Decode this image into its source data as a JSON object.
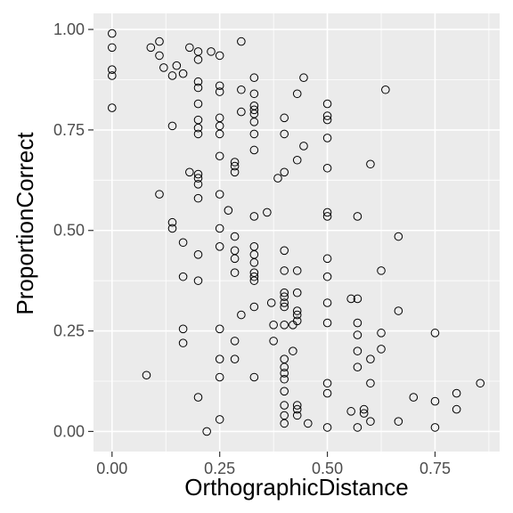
{
  "chart_data": {
    "type": "scatter",
    "title": "",
    "xlabel": "OrthographicDistance",
    "ylabel": "ProportionCorrect",
    "xlim": [
      -0.043,
      0.9
    ],
    "ylim": [
      -0.05,
      1.04
    ],
    "x_ticks": [
      0.0,
      0.25,
      0.5,
      0.75
    ],
    "x_tick_labels": [
      "0.00",
      "0.25",
      "0.50",
      "0.75"
    ],
    "y_ticks": [
      0.0,
      0.25,
      0.5,
      0.75,
      1.0
    ],
    "y_tick_labels": [
      "0.00",
      "0.25",
      "0.50",
      "0.75",
      "1.00"
    ],
    "grid": true,
    "legend": "none",
    "points": [
      {
        "x": 0.0,
        "y": 0.99
      },
      {
        "x": 0.0,
        "y": 0.955
      },
      {
        "x": 0.0,
        "y": 0.9
      },
      {
        "x": 0.0,
        "y": 0.885
      },
      {
        "x": 0.0,
        "y": 0.805
      },
      {
        "x": 0.09,
        "y": 0.955
      },
      {
        "x": 0.08,
        "y": 0.14
      },
      {
        "x": 0.11,
        "y": 0.97
      },
      {
        "x": 0.11,
        "y": 0.935
      },
      {
        "x": 0.12,
        "y": 0.905
      },
      {
        "x": 0.11,
        "y": 0.59
      },
      {
        "x": 0.14,
        "y": 0.885
      },
      {
        "x": 0.15,
        "y": 0.91
      },
      {
        "x": 0.165,
        "y": 0.89
      },
      {
        "x": 0.14,
        "y": 0.76
      },
      {
        "x": 0.14,
        "y": 0.52
      },
      {
        "x": 0.14,
        "y": 0.505
      },
      {
        "x": 0.165,
        "y": 0.47
      },
      {
        "x": 0.165,
        "y": 0.385
      },
      {
        "x": 0.165,
        "y": 0.255
      },
      {
        "x": 0.165,
        "y": 0.22
      },
      {
        "x": 0.18,
        "y": 0.955
      },
      {
        "x": 0.2,
        "y": 0.945
      },
      {
        "x": 0.2,
        "y": 0.925
      },
      {
        "x": 0.2,
        "y": 0.87
      },
      {
        "x": 0.2,
        "y": 0.855
      },
      {
        "x": 0.2,
        "y": 0.815
      },
      {
        "x": 0.2,
        "y": 0.775
      },
      {
        "x": 0.2,
        "y": 0.755
      },
      {
        "x": 0.2,
        "y": 0.74
      },
      {
        "x": 0.18,
        "y": 0.645
      },
      {
        "x": 0.2,
        "y": 0.64
      },
      {
        "x": 0.2,
        "y": 0.63
      },
      {
        "x": 0.2,
        "y": 0.615
      },
      {
        "x": 0.2,
        "y": 0.58
      },
      {
        "x": 0.2,
        "y": 0.44
      },
      {
        "x": 0.2,
        "y": 0.375
      },
      {
        "x": 0.2,
        "y": 0.085
      },
      {
        "x": 0.22,
        "y": 0.0
      },
      {
        "x": 0.23,
        "y": 0.945
      },
      {
        "x": 0.25,
        "y": 0.935
      },
      {
        "x": 0.25,
        "y": 0.86
      },
      {
        "x": 0.25,
        "y": 0.845
      },
      {
        "x": 0.25,
        "y": 0.78
      },
      {
        "x": 0.25,
        "y": 0.76
      },
      {
        "x": 0.25,
        "y": 0.74
      },
      {
        "x": 0.25,
        "y": 0.685
      },
      {
        "x": 0.25,
        "y": 0.59
      },
      {
        "x": 0.25,
        "y": 0.505
      },
      {
        "x": 0.25,
        "y": 0.46
      },
      {
        "x": 0.25,
        "y": 0.255
      },
      {
        "x": 0.25,
        "y": 0.18
      },
      {
        "x": 0.25,
        "y": 0.135
      },
      {
        "x": 0.25,
        "y": 0.03
      },
      {
        "x": 0.27,
        "y": 0.55
      },
      {
        "x": 0.285,
        "y": 0.67
      },
      {
        "x": 0.285,
        "y": 0.66
      },
      {
        "x": 0.285,
        "y": 0.645
      },
      {
        "x": 0.285,
        "y": 0.485
      },
      {
        "x": 0.285,
        "y": 0.45
      },
      {
        "x": 0.285,
        "y": 0.43
      },
      {
        "x": 0.285,
        "y": 0.395
      },
      {
        "x": 0.285,
        "y": 0.225
      },
      {
        "x": 0.285,
        "y": 0.18
      },
      {
        "x": 0.3,
        "y": 0.97
      },
      {
        "x": 0.3,
        "y": 0.85
      },
      {
        "x": 0.3,
        "y": 0.795
      },
      {
        "x": 0.3,
        "y": 0.29
      },
      {
        "x": 0.33,
        "y": 0.88
      },
      {
        "x": 0.33,
        "y": 0.84
      },
      {
        "x": 0.33,
        "y": 0.81
      },
      {
        "x": 0.33,
        "y": 0.8
      },
      {
        "x": 0.33,
        "y": 0.79
      },
      {
        "x": 0.33,
        "y": 0.77
      },
      {
        "x": 0.33,
        "y": 0.74
      },
      {
        "x": 0.33,
        "y": 0.7
      },
      {
        "x": 0.33,
        "y": 0.535
      },
      {
        "x": 0.33,
        "y": 0.46
      },
      {
        "x": 0.33,
        "y": 0.44
      },
      {
        "x": 0.33,
        "y": 0.42
      },
      {
        "x": 0.33,
        "y": 0.395
      },
      {
        "x": 0.33,
        "y": 0.385
      },
      {
        "x": 0.33,
        "y": 0.375
      },
      {
        "x": 0.33,
        "y": 0.31
      },
      {
        "x": 0.33,
        "y": 0.135
      },
      {
        "x": 0.36,
        "y": 0.545
      },
      {
        "x": 0.37,
        "y": 0.32
      },
      {
        "x": 0.375,
        "y": 0.265
      },
      {
        "x": 0.375,
        "y": 0.225
      },
      {
        "x": 0.385,
        "y": 0.63
      },
      {
        "x": 0.4,
        "y": 0.78
      },
      {
        "x": 0.4,
        "y": 0.74
      },
      {
        "x": 0.4,
        "y": 0.645
      },
      {
        "x": 0.4,
        "y": 0.45
      },
      {
        "x": 0.4,
        "y": 0.4
      },
      {
        "x": 0.4,
        "y": 0.345
      },
      {
        "x": 0.4,
        "y": 0.335
      },
      {
        "x": 0.4,
        "y": 0.32
      },
      {
        "x": 0.4,
        "y": 0.31
      },
      {
        "x": 0.4,
        "y": 0.265
      },
      {
        "x": 0.4,
        "y": 0.18
      },
      {
        "x": 0.4,
        "y": 0.16
      },
      {
        "x": 0.4,
        "y": 0.145
      },
      {
        "x": 0.4,
        "y": 0.13
      },
      {
        "x": 0.4,
        "y": 0.1
      },
      {
        "x": 0.4,
        "y": 0.065
      },
      {
        "x": 0.4,
        "y": 0.04
      },
      {
        "x": 0.4,
        "y": 0.02
      },
      {
        "x": 0.42,
        "y": 0.265
      },
      {
        "x": 0.42,
        "y": 0.2
      },
      {
        "x": 0.43,
        "y": 0.84
      },
      {
        "x": 0.43,
        "y": 0.675
      },
      {
        "x": 0.43,
        "y": 0.4
      },
      {
        "x": 0.43,
        "y": 0.345
      },
      {
        "x": 0.43,
        "y": 0.3
      },
      {
        "x": 0.43,
        "y": 0.29
      },
      {
        "x": 0.43,
        "y": 0.275
      },
      {
        "x": 0.43,
        "y": 0.065
      },
      {
        "x": 0.43,
        "y": 0.055
      },
      {
        "x": 0.43,
        "y": 0.04
      },
      {
        "x": 0.445,
        "y": 0.88
      },
      {
        "x": 0.445,
        "y": 0.71
      },
      {
        "x": 0.455,
        "y": 0.02
      },
      {
        "x": 0.5,
        "y": 0.815
      },
      {
        "x": 0.5,
        "y": 0.785
      },
      {
        "x": 0.5,
        "y": 0.775
      },
      {
        "x": 0.5,
        "y": 0.73
      },
      {
        "x": 0.5,
        "y": 0.655
      },
      {
        "x": 0.5,
        "y": 0.545
      },
      {
        "x": 0.5,
        "y": 0.535
      },
      {
        "x": 0.5,
        "y": 0.43
      },
      {
        "x": 0.5,
        "y": 0.385
      },
      {
        "x": 0.5,
        "y": 0.32
      },
      {
        "x": 0.5,
        "y": 0.27
      },
      {
        "x": 0.5,
        "y": 0.12
      },
      {
        "x": 0.5,
        "y": 0.095
      },
      {
        "x": 0.5,
        "y": 0.01
      },
      {
        "x": 0.555,
        "y": 0.33
      },
      {
        "x": 0.555,
        "y": 0.05
      },
      {
        "x": 0.57,
        "y": 0.535
      },
      {
        "x": 0.57,
        "y": 0.33
      },
      {
        "x": 0.57,
        "y": 0.27
      },
      {
        "x": 0.57,
        "y": 0.24
      },
      {
        "x": 0.57,
        "y": 0.2
      },
      {
        "x": 0.57,
        "y": 0.16
      },
      {
        "x": 0.57,
        "y": 0.01
      },
      {
        "x": 0.585,
        "y": 0.055
      },
      {
        "x": 0.585,
        "y": 0.045
      },
      {
        "x": 0.6,
        "y": 0.665
      },
      {
        "x": 0.6,
        "y": 0.18
      },
      {
        "x": 0.6,
        "y": 0.12
      },
      {
        "x": 0.6,
        "y": 0.025
      },
      {
        "x": 0.625,
        "y": 0.4
      },
      {
        "x": 0.625,
        "y": 0.245
      },
      {
        "x": 0.625,
        "y": 0.205
      },
      {
        "x": 0.635,
        "y": 0.85
      },
      {
        "x": 0.665,
        "y": 0.485
      },
      {
        "x": 0.665,
        "y": 0.3
      },
      {
        "x": 0.665,
        "y": 0.025
      },
      {
        "x": 0.7,
        "y": 0.085
      },
      {
        "x": 0.75,
        "y": 0.245
      },
      {
        "x": 0.75,
        "y": 0.075
      },
      {
        "x": 0.75,
        "y": 0.01
      },
      {
        "x": 0.8,
        "y": 0.095
      },
      {
        "x": 0.8,
        "y": 0.055
      },
      {
        "x": 0.855,
        "y": 0.12
      }
    ]
  }
}
